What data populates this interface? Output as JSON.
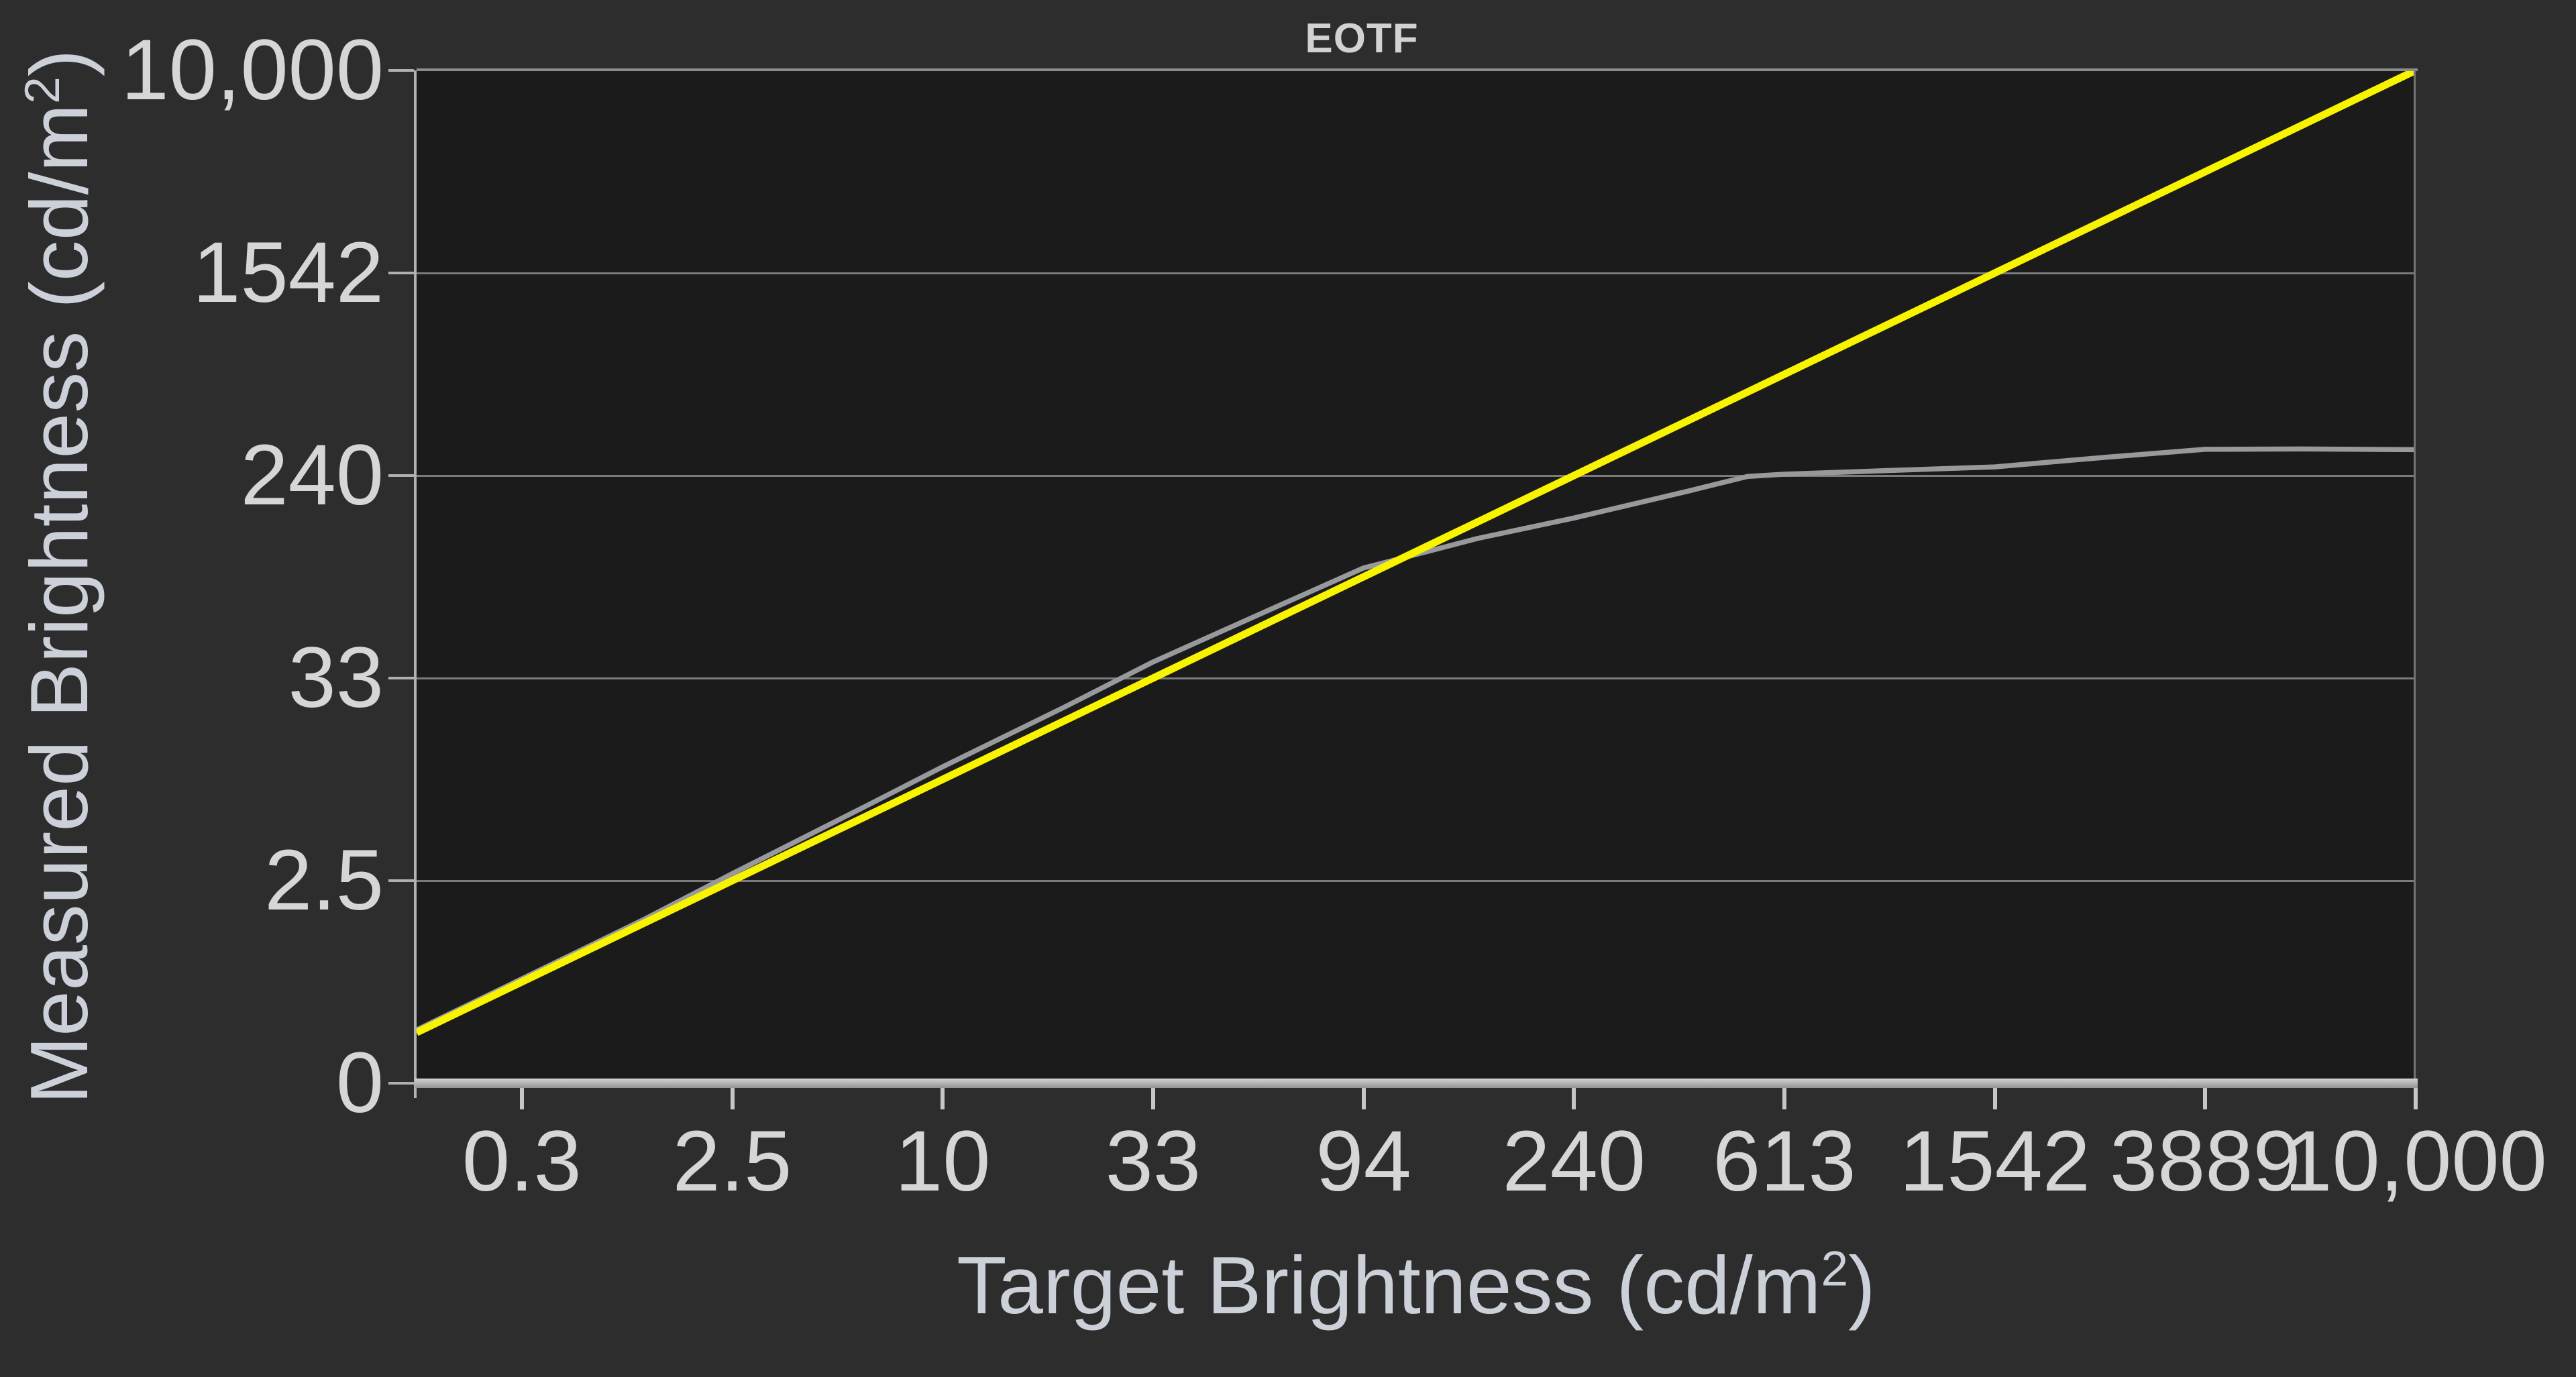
{
  "title": "EOTF",
  "x_axis": {
    "title_pre": "Target Brightness (cd/m",
    "title_sup": "2",
    "title_post": ")"
  },
  "y_axis": {
    "title_pre": "Measured Brightness (cd/m",
    "title_sup": "2",
    "title_post": ")"
  },
  "colors": {
    "background": "#2d2d2d",
    "plot_background": "#1b1b1b",
    "gridline": "#7b7b7b",
    "axis": "#b2b2b2",
    "tick_text": "#d6d6d6",
    "axis_title_text": "#ccd1d9",
    "reference_yellow": "#f8f400",
    "measured_gray": "#97999d"
  },
  "chart_data": {
    "type": "line",
    "title": "EOTF",
    "xlabel": "Target Brightness (cd/m²)",
    "ylabel": "Measured Brightness (cd/m²)",
    "scale_note": "Both axes are PQ (SMPTE ST 2084) scaled: listed ticks sit at equal PQ-signal steps of 0.1; x range is PQ 0.05–1.0 (≈0.1–10,000 cd/m²), y range is PQ 0–1.0 (0–10,000 cd/m²)",
    "grid": "horizontal-only",
    "legend_position": "none",
    "x_ticks": [
      0.3,
      2.5,
      10,
      33,
      94,
      240,
      613,
      1542,
      3889,
      10000
    ],
    "x_tick_labels": [
      "0.3",
      "2.5",
      "10",
      "33",
      "94",
      "240",
      "613",
      "1542",
      "3889",
      "10,000"
    ],
    "y_ticks": [
      0,
      2.5,
      33,
      240,
      1542,
      10000
    ],
    "y_tick_labels": [
      "0",
      "2.5",
      "33",
      "240",
      "1542",
      "10,000"
    ],
    "series": [
      {
        "name": "measured",
        "color": "#97999d",
        "stroke_px": 7.5,
        "points": [
          [
            0.104,
            0.11
          ],
          [
            0.3,
            0.32
          ],
          [
            1.0,
            1.08
          ],
          [
            2.5,
            2.75
          ],
          [
            6,
            6.9
          ],
          [
            10,
            11.6
          ],
          [
            20,
            23.5
          ],
          [
            33,
            39
          ],
          [
            60,
            68
          ],
          [
            94,
            102
          ],
          [
            112,
            112
          ],
          [
            156,
            134
          ],
          [
            240,
            162
          ],
          [
            400,
            208
          ],
          [
            520,
            238
          ],
          [
            613,
            243
          ],
          [
            1000,
            252
          ],
          [
            1542,
            260
          ],
          [
            2500,
            284
          ],
          [
            3889,
            306
          ],
          [
            6000,
            307
          ],
          [
            10000,
            305
          ]
        ]
      },
      {
        "name": "target_reference",
        "color": "#f8f400",
        "stroke_px": 11,
        "points": [
          [
            0.104,
            0.104
          ],
          [
            0.3,
            0.3
          ],
          [
            2.5,
            2.5
          ],
          [
            10,
            10
          ],
          [
            33,
            33
          ],
          [
            94,
            94
          ],
          [
            240,
            240
          ],
          [
            613,
            613
          ],
          [
            1542,
            1542
          ],
          [
            3889,
            3889
          ],
          [
            10000,
            10000
          ]
        ]
      }
    ]
  }
}
